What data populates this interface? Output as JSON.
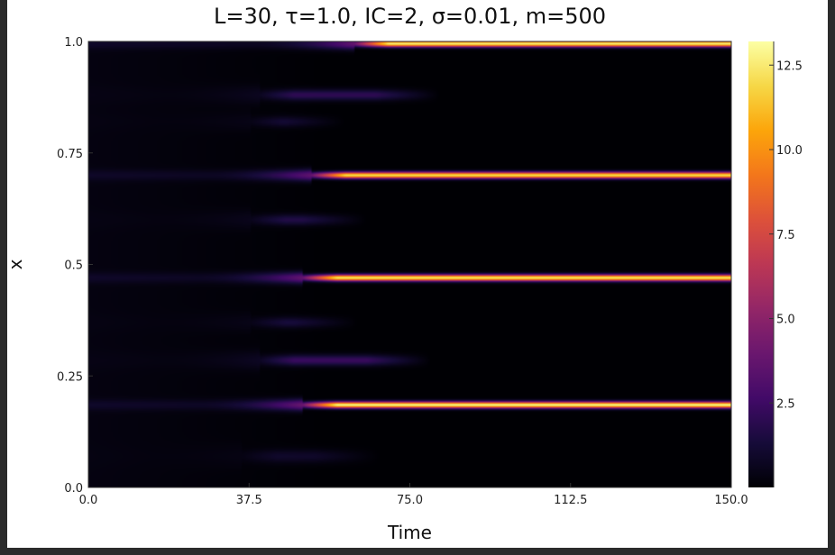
{
  "chart_data": {
    "type": "heatmap",
    "title": "L=30, τ=1.0, IC=2, σ=0.01, m=500",
    "xlabel": "Time",
    "ylabel": "x",
    "xlim": [
      0,
      150
    ],
    "ylim": [
      0,
      1
    ],
    "x_ticks": [
      {
        "value": 0,
        "label": "0.0"
      },
      {
        "value": 37.5,
        "label": "37.5"
      },
      {
        "value": 75,
        "label": "75.0"
      },
      {
        "value": 112.5,
        "label": "112.5"
      },
      {
        "value": 150,
        "label": "150.0"
      }
    ],
    "y_ticks": [
      {
        "value": 0,
        "label": "0.0"
      },
      {
        "value": 0.25,
        "label": "0.25"
      },
      {
        "value": 0.5,
        "label": "0.5"
      },
      {
        "value": 0.75,
        "label": "0.75"
      },
      {
        "value": 1,
        "label": "1.0"
      }
    ],
    "colorbar": {
      "colormap": "inferno",
      "range": [
        0,
        13.2
      ],
      "ticks": [
        {
          "value": 2.5,
          "label": "2.5"
        },
        {
          "value": 5,
          "label": "5.0"
        },
        {
          "value": 7.5,
          "label": "7.5"
        },
        {
          "value": 10,
          "label": "10.0"
        },
        {
          "value": 12.5,
          "label": "12.5"
        }
      ]
    },
    "background_value": 0.3,
    "stripes": [
      {
        "x": 0.995,
        "peak": 12.5,
        "t_onset": 62,
        "t_decay": null,
        "width": 0.007
      },
      {
        "x": 0.7,
        "peak": 12.0,
        "t_onset": 52,
        "t_decay": null,
        "width": 0.007
      },
      {
        "x": 0.47,
        "peak": 12.3,
        "t_onset": 50,
        "t_decay": null,
        "width": 0.007
      },
      {
        "x": 0.185,
        "peak": 12.8,
        "t_onset": 50,
        "t_decay": null,
        "width": 0.007
      },
      {
        "x": 0.88,
        "peak": 2.0,
        "t_onset": 40,
        "t_decay": 82,
        "width": 0.012
      },
      {
        "x": 0.82,
        "peak": 1.2,
        "t_onset": 38,
        "t_decay": 60,
        "width": 0.012
      },
      {
        "x": 0.6,
        "peak": 1.6,
        "t_onset": 38,
        "t_decay": 65,
        "width": 0.012
      },
      {
        "x": 0.37,
        "peak": 1.3,
        "t_onset": 38,
        "t_decay": 63,
        "width": 0.012
      },
      {
        "x": 0.285,
        "peak": 2.3,
        "t_onset": 40,
        "t_decay": 80,
        "width": 0.012
      },
      {
        "x": 0.07,
        "peak": 0.9,
        "t_onset": 36,
        "t_decay": 68,
        "width": 0.015
      }
    ]
  }
}
